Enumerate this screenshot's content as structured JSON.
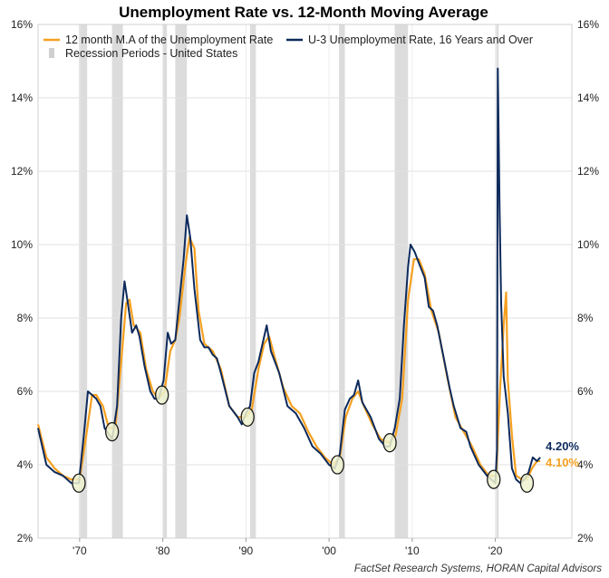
{
  "chart_data": {
    "type": "line",
    "title": "Unemployment Rate vs. 12-Month Moving Average",
    "source": "FactSet Research Systems, HORAN Capital Advisors",
    "xlim": [
      1965.0,
      2029.2
    ],
    "ylim": [
      2,
      16
    ],
    "y_ticks": [
      "2%",
      "4%",
      "6%",
      "8%",
      "10%",
      "12%",
      "14%",
      "16%"
    ],
    "x_ticks": [
      {
        "x": 1970,
        "label": "'70"
      },
      {
        "x": 1980,
        "label": "'80"
      },
      {
        "x": 1990,
        "label": "'90"
      },
      {
        "x": 2000,
        "label": "'00"
      },
      {
        "x": 2010,
        "label": "'10"
      },
      {
        "x": 2020,
        "label": "'20"
      }
    ],
    "grid": true,
    "legend_position": "top-left",
    "colors": {
      "ur": "#0d2a5c",
      "ma": "#f5a01f",
      "recession": "#dcdcdc",
      "marker_fill": "#eef2cf",
      "marker_stroke": "#1a1a1a"
    },
    "legend": {
      "ma": "12 month M.A of the Unemployment Rate",
      "ur": "U-3 Unemployment Rate, 16 Years and Over",
      "recession": "Recession Periods - United States"
    },
    "recessions": [
      [
        1969.9,
        1970.9
      ],
      [
        1973.9,
        1975.2
      ],
      [
        1980.0,
        1980.5
      ],
      [
        1981.5,
        1982.9
      ],
      [
        1990.5,
        1991.2
      ],
      [
        2001.2,
        2001.9
      ],
      [
        2007.9,
        2009.5
      ],
      [
        2020.1,
        2020.4
      ]
    ],
    "markers": [
      [
        1969.9,
        3.5
      ],
      [
        1973.9,
        4.9
      ],
      [
        1979.9,
        5.9
      ],
      [
        1990.2,
        5.3
      ],
      [
        2001.0,
        4.0
      ],
      [
        2007.3,
        4.6
      ],
      [
        2019.8,
        3.6
      ],
      [
        2023.8,
        3.5
      ]
    ],
    "series": [
      {
        "name": "U-3 Unemployment Rate, 16 Years and Over",
        "key": "ur",
        "points": [
          [
            1965.0,
            5.0
          ],
          [
            1966.0,
            4.0
          ],
          [
            1967.0,
            3.8
          ],
          [
            1968.0,
            3.7
          ],
          [
            1969.0,
            3.5
          ],
          [
            1969.9,
            3.5
          ],
          [
            1970.5,
            4.8
          ],
          [
            1971.0,
            6.0
          ],
          [
            1971.5,
            5.9
          ],
          [
            1972.0,
            5.8
          ],
          [
            1972.5,
            5.6
          ],
          [
            1973.0,
            5.0
          ],
          [
            1973.9,
            4.7
          ],
          [
            1974.5,
            5.6
          ],
          [
            1975.0,
            8.0
          ],
          [
            1975.4,
            9.0
          ],
          [
            1975.8,
            8.4
          ],
          [
            1976.3,
            7.6
          ],
          [
            1976.8,
            7.8
          ],
          [
            1977.2,
            7.5
          ],
          [
            1977.8,
            6.7
          ],
          [
            1978.5,
            6.0
          ],
          [
            1979.0,
            5.8
          ],
          [
            1979.5,
            5.8
          ],
          [
            1980.1,
            6.3
          ],
          [
            1980.6,
            7.6
          ],
          [
            1981.0,
            7.3
          ],
          [
            1981.5,
            7.4
          ],
          [
            1982.0,
            8.5
          ],
          [
            1982.5,
            9.6
          ],
          [
            1982.9,
            10.8
          ],
          [
            1983.3,
            10.2
          ],
          [
            1983.8,
            8.8
          ],
          [
            1984.5,
            7.4
          ],
          [
            1985.0,
            7.2
          ],
          [
            1985.5,
            7.2
          ],
          [
            1986.0,
            7.0
          ],
          [
            1986.5,
            6.9
          ],
          [
            1987.0,
            6.5
          ],
          [
            1988.0,
            5.6
          ],
          [
            1989.0,
            5.3
          ],
          [
            1989.5,
            5.1
          ],
          [
            1990.0,
            5.4
          ],
          [
            1990.5,
            5.6
          ],
          [
            1991.0,
            6.5
          ],
          [
            1991.5,
            6.8
          ],
          [
            1992.0,
            7.3
          ],
          [
            1992.5,
            7.8
          ],
          [
            1993.0,
            7.1
          ],
          [
            1994.0,
            6.5
          ],
          [
            1995.0,
            5.6
          ],
          [
            1996.0,
            5.4
          ],
          [
            1997.0,
            5.0
          ],
          [
            1998.0,
            4.5
          ],
          [
            1999.0,
            4.3
          ],
          [
            2000.0,
            4.0
          ],
          [
            2000.7,
            3.9
          ],
          [
            2001.3,
            4.3
          ],
          [
            2001.9,
            5.5
          ],
          [
            2002.5,
            5.8
          ],
          [
            2003.0,
            5.9
          ],
          [
            2003.5,
            6.3
          ],
          [
            2004.0,
            5.7
          ],
          [
            2005.0,
            5.3
          ],
          [
            2006.0,
            4.7
          ],
          [
            2006.8,
            4.5
          ],
          [
            2007.3,
            4.5
          ],
          [
            2007.9,
            5.0
          ],
          [
            2008.5,
            5.8
          ],
          [
            2009.0,
            7.8
          ],
          [
            2009.5,
            9.4
          ],
          [
            2009.8,
            10.0
          ],
          [
            2010.3,
            9.8
          ],
          [
            2010.8,
            9.5
          ],
          [
            2011.5,
            9.1
          ],
          [
            2012.0,
            8.3
          ],
          [
            2012.5,
            8.2
          ],
          [
            2013.0,
            7.8
          ],
          [
            2013.8,
            6.9
          ],
          [
            2014.5,
            6.1
          ],
          [
            2015.0,
            5.6
          ],
          [
            2015.8,
            5.0
          ],
          [
            2016.5,
            4.9
          ],
          [
            2017.0,
            4.5
          ],
          [
            2018.0,
            4.0
          ],
          [
            2019.0,
            3.7
          ],
          [
            2020.0,
            3.5
          ],
          [
            2020.2,
            4.4
          ],
          [
            2020.3,
            14.8
          ],
          [
            2020.5,
            11.1
          ],
          [
            2020.7,
            8.4
          ],
          [
            2021.0,
            6.4
          ],
          [
            2021.5,
            5.4
          ],
          [
            2022.0,
            3.9
          ],
          [
            2022.5,
            3.6
          ],
          [
            2023.0,
            3.5
          ],
          [
            2023.5,
            3.6
          ],
          [
            2024.0,
            3.8
          ],
          [
            2024.5,
            4.2
          ],
          [
            2025.0,
            4.1
          ],
          [
            2025.4,
            4.2
          ]
        ]
      },
      {
        "name": "12 month M.A of the Unemployment Rate",
        "key": "ma",
        "points": [
          [
            1965.0,
            5.1
          ],
          [
            1966.0,
            4.2
          ],
          [
            1967.0,
            3.9
          ],
          [
            1968.0,
            3.7
          ],
          [
            1969.0,
            3.6
          ],
          [
            1970.0,
            3.6
          ],
          [
            1970.8,
            4.8
          ],
          [
            1971.5,
            5.9
          ],
          [
            1972.0,
            5.9
          ],
          [
            1972.8,
            5.6
          ],
          [
            1973.5,
            5.0
          ],
          [
            1974.3,
            5.0
          ],
          [
            1975.0,
            6.8
          ],
          [
            1975.6,
            8.4
          ],
          [
            1976.0,
            8.5
          ],
          [
            1976.5,
            7.8
          ],
          [
            1977.3,
            7.6
          ],
          [
            1978.0,
            6.6
          ],
          [
            1978.8,
            6.0
          ],
          [
            1979.5,
            5.8
          ],
          [
            1980.2,
            6.0
          ],
          [
            1980.9,
            7.1
          ],
          [
            1981.5,
            7.4
          ],
          [
            1982.0,
            8.0
          ],
          [
            1982.7,
            9.4
          ],
          [
            1983.2,
            10.2
          ],
          [
            1983.8,
            9.9
          ],
          [
            1984.3,
            8.2
          ],
          [
            1985.0,
            7.3
          ],
          [
            1986.0,
            7.1
          ],
          [
            1987.0,
            6.6
          ],
          [
            1988.0,
            5.6
          ],
          [
            1989.0,
            5.3
          ],
          [
            1990.0,
            5.3
          ],
          [
            1990.7,
            5.5
          ],
          [
            1991.5,
            6.6
          ],
          [
            1992.2,
            7.3
          ],
          [
            1992.8,
            7.5
          ],
          [
            1993.5,
            6.9
          ],
          [
            1994.5,
            6.1
          ],
          [
            1995.5,
            5.6
          ],
          [
            1996.5,
            5.4
          ],
          [
            1997.5,
            4.9
          ],
          [
            1998.5,
            4.5
          ],
          [
            1999.5,
            4.2
          ],
          [
            2000.5,
            4.0
          ],
          [
            2001.3,
            4.2
          ],
          [
            2002.0,
            5.3
          ],
          [
            2002.8,
            5.8
          ],
          [
            2003.5,
            6.0
          ],
          [
            2004.2,
            5.6
          ],
          [
            2005.2,
            5.1
          ],
          [
            2006.2,
            4.7
          ],
          [
            2007.2,
            4.6
          ],
          [
            2008.0,
            4.8
          ],
          [
            2008.8,
            5.8
          ],
          [
            2009.5,
            8.5
          ],
          [
            2010.2,
            9.6
          ],
          [
            2010.8,
            9.6
          ],
          [
            2011.5,
            9.2
          ],
          [
            2012.3,
            8.2
          ],
          [
            2013.2,
            7.6
          ],
          [
            2014.2,
            6.4
          ],
          [
            2015.2,
            5.3
          ],
          [
            2016.2,
            4.9
          ],
          [
            2017.2,
            4.5
          ],
          [
            2018.2,
            4.0
          ],
          [
            2019.2,
            3.7
          ],
          [
            2020.1,
            3.7
          ],
          [
            2020.6,
            6.2
          ],
          [
            2021.0,
            7.8
          ],
          [
            2021.3,
            8.7
          ],
          [
            2021.5,
            6.3
          ],
          [
            2022.0,
            4.8
          ],
          [
            2022.5,
            3.7
          ],
          [
            2023.2,
            3.6
          ],
          [
            2023.8,
            3.6
          ],
          [
            2024.4,
            3.9
          ],
          [
            2025.0,
            4.1
          ],
          [
            2025.4,
            4.1
          ]
        ]
      }
    ],
    "end_labels": [
      {
        "key": "ur",
        "text": "4.20%",
        "y": 4.2
      },
      {
        "key": "ma",
        "text": "4.10%",
        "y": 4.1
      }
    ]
  }
}
